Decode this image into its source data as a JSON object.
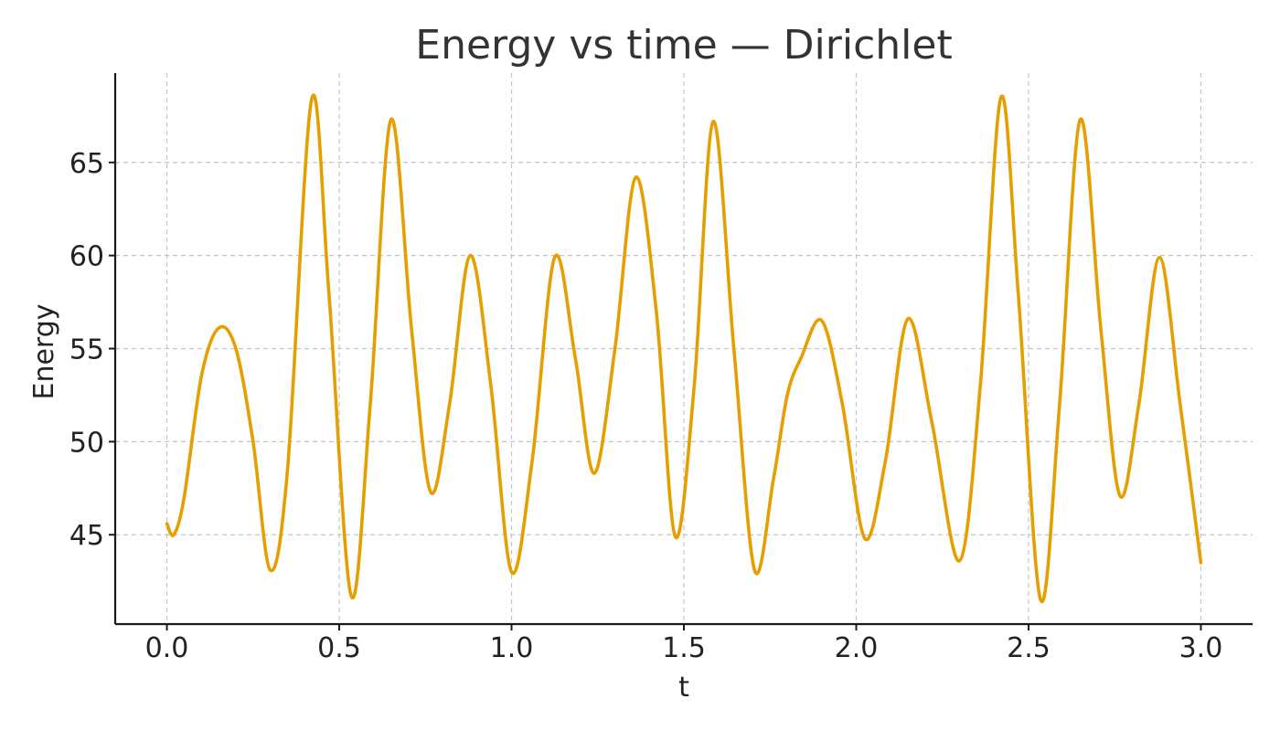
{
  "chart_data": {
    "type": "line",
    "title": "Energy vs time — Dirichlet",
    "xlabel": "t",
    "ylabel": "Energy",
    "xlim": [
      -0.15,
      3.15
    ],
    "ylim": [
      40.2,
      69.8
    ],
    "xticks": [
      0.0,
      0.5,
      1.0,
      1.5,
      2.0,
      2.5,
      3.0
    ],
    "xtick_labels": [
      "0.0",
      "0.5",
      "1.0",
      "1.5",
      "2.0",
      "2.5",
      "3.0"
    ],
    "yticks": [
      45,
      50,
      55,
      60,
      65
    ],
    "ytick_labels": [
      "45",
      "50",
      "55",
      "60",
      "65"
    ],
    "grid": true,
    "line_color": "#E69F00",
    "series": [
      {
        "x": [
          0.0,
          0.02,
          0.05,
          0.1,
          0.15,
          0.2,
          0.25,
          0.3,
          0.35,
          0.42,
          0.47,
          0.535,
          0.59,
          0.65,
          0.71,
          0.765,
          0.82,
          0.88,
          0.94,
          1.0,
          1.06,
          1.125,
          1.185,
          1.24,
          1.3,
          1.36,
          1.42,
          1.475,
          1.53,
          1.585,
          1.645,
          1.705,
          1.76,
          1.8,
          1.84,
          1.9,
          1.96,
          2.025,
          2.085,
          2.15,
          2.22,
          2.3,
          2.36,
          2.42,
          2.47,
          2.535,
          2.59,
          2.65,
          2.71,
          2.765,
          2.82,
          2.88,
          2.94,
          3.0
        ],
        "y": [
          45.6,
          45.0,
          47.0,
          53.5,
          56.1,
          55.0,
          50.0,
          43.1,
          48.5,
          68.4,
          58.0,
          41.7,
          52.0,
          67.3,
          56.0,
          47.3,
          52.0,
          60.0,
          53.0,
          43.0,
          49.0,
          59.9,
          54.5,
          48.3,
          55.0,
          64.2,
          57.0,
          44.9,
          53.0,
          67.2,
          55.0,
          43.1,
          48.0,
          52.5,
          54.5,
          56.5,
          52.0,
          44.8,
          49.0,
          56.6,
          51.0,
          43.6,
          53.0,
          68.5,
          58.0,
          41.5,
          52.0,
          67.3,
          56.0,
          47.1,
          52.0,
          59.9,
          52.0,
          43.5
        ]
      }
    ]
  }
}
